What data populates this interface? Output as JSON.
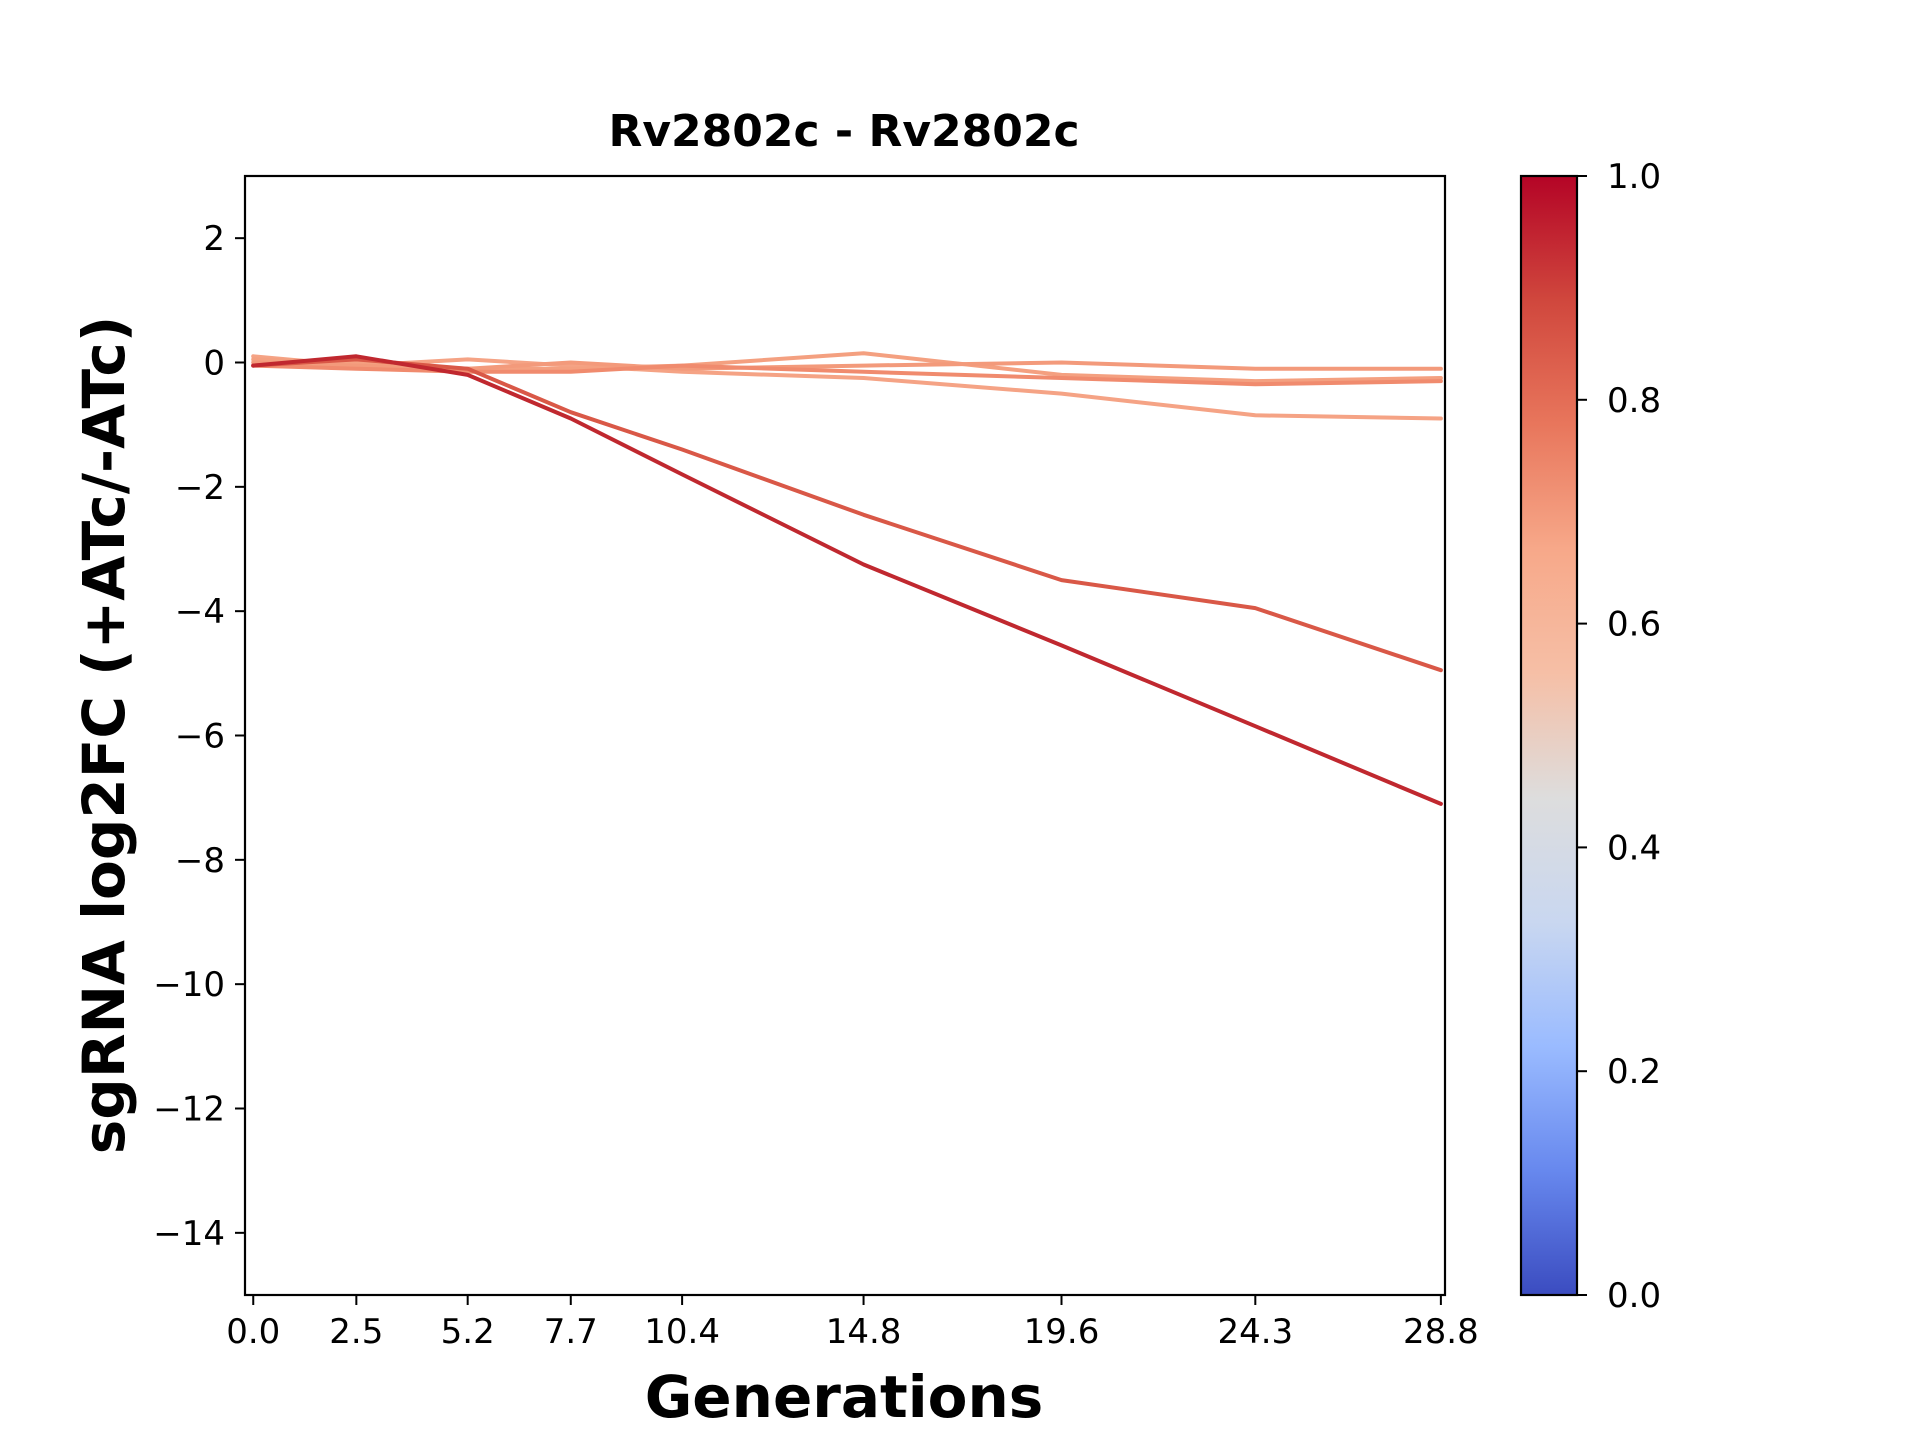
{
  "chart_data": {
    "type": "line",
    "title": "Rv2802c - Rv2802c",
    "xlabel": "Generations",
    "ylabel": "sgRNA log2FC (+ATc/-ATc)",
    "x": [
      0.0,
      2.5,
      5.2,
      7.7,
      10.4,
      14.8,
      19.6,
      24.3,
      28.8
    ],
    "x_tick_labels": [
      "0.0",
      "2.5",
      "5.2",
      "7.7",
      "10.4",
      "14.8",
      "19.6",
      "24.3",
      "28.8"
    ],
    "xlim": [
      -0.2,
      28.9
    ],
    "ylim": [
      -15,
      3
    ],
    "y_ticks": [
      2,
      0,
      -2,
      -4,
      -6,
      -8,
      -10,
      -12,
      -14
    ],
    "y_tick_labels": [
      "2",
      "0",
      "−2",
      "−4",
      "−6",
      "−8",
      "−10",
      "−12",
      "−14"
    ],
    "grid": false,
    "series": [
      {
        "color": "#f5a385",
        "values": [
          0.1,
          -0.05,
          0.05,
          -0.05,
          -0.15,
          -0.25,
          -0.5,
          -0.85,
          -0.9
        ]
      },
      {
        "color": "#f4a080",
        "values": [
          0.05,
          0.0,
          -0.1,
          -0.1,
          -0.05,
          0.15,
          -0.2,
          -0.3,
          -0.25
        ]
      },
      {
        "color": "#f39a7b",
        "values": [
          0.0,
          -0.05,
          -0.1,
          0.0,
          -0.1,
          -0.05,
          0.0,
          -0.1,
          -0.1
        ]
      },
      {
        "color": "#f08b6e",
        "values": [
          -0.05,
          -0.1,
          -0.15,
          -0.15,
          -0.05,
          -0.15,
          -0.25,
          -0.35,
          -0.3
        ]
      },
      {
        "color": "#d95847",
        "values": [
          -0.05,
          0.05,
          -0.1,
          -0.8,
          -1.4,
          -2.45,
          -3.5,
          -3.95,
          -4.95
        ]
      },
      {
        "color": "#c0282f",
        "values": [
          -0.05,
          0.1,
          -0.2,
          -0.9,
          -1.8,
          -3.25,
          -4.55,
          -5.85,
          -7.1
        ]
      }
    ],
    "colorbar": {
      "colormap": "coolwarm",
      "range": [
        0.0,
        1.0
      ],
      "ticks": [
        0.0,
        0.2,
        0.4,
        0.6,
        0.8,
        1.0
      ],
      "tick_labels": [
        "0.0",
        "0.2",
        "0.4",
        "0.6",
        "0.8",
        "1.0"
      ],
      "stops": [
        "#3b4cc0",
        "#6788ee",
        "#9abbff",
        "#c9d7f0",
        "#dddddd",
        "#f6bfa6",
        "#f7a889",
        "#e8765c",
        "#d0473d",
        "#b40426"
      ]
    }
  }
}
